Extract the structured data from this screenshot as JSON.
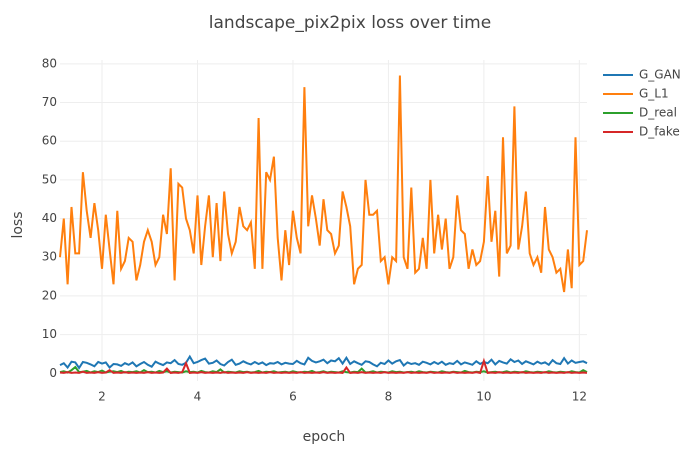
{
  "chart_data": {
    "type": "line",
    "title": "landscape_pix2pix loss over time",
    "x_label": "epoch",
    "y_label": "loss",
    "xlim": [
      1.12,
      12.16
    ],
    "xticks": [
      2,
      4,
      6,
      8,
      10,
      12
    ],
    "ylim": [
      -2,
      81
    ],
    "yticks": [
      0,
      10,
      20,
      30,
      40,
      50,
      60,
      70,
      80
    ],
    "grid": true,
    "legend": "top-right",
    "x": [
      1.12,
      1.2,
      1.28,
      1.36,
      1.44,
      1.52,
      1.6,
      1.68,
      1.76,
      1.84,
      1.92,
      2,
      2.08,
      2.16,
      2.24,
      2.32,
      2.4,
      2.48,
      2.56,
      2.64,
      2.72,
      2.8,
      2.88,
      2.96,
      3.04,
      3.12,
      3.2,
      3.28,
      3.36,
      3.44,
      3.52,
      3.6,
      3.68,
      3.76,
      3.84,
      3.92,
      4,
      4.08,
      4.16,
      4.24,
      4.32,
      4.4,
      4.48,
      4.56,
      4.64,
      4.72,
      4.8,
      4.88,
      4.96,
      5.04,
      5.12,
      5.2,
      5.28,
      5.36,
      5.44,
      5.52,
      5.6,
      5.68,
      5.76,
      5.84,
      5.92,
      6,
      6.08,
      6.16,
      6.24,
      6.32,
      6.4,
      6.48,
      6.56,
      6.64,
      6.72,
      6.8,
      6.88,
      6.96,
      7.04,
      7.12,
      7.2,
      7.28,
      7.36,
      7.44,
      7.52,
      7.6,
      7.68,
      7.76,
      7.84,
      7.92,
      8,
      8.08,
      8.16,
      8.24,
      8.32,
      8.4,
      8.48,
      8.56,
      8.64,
      8.72,
      8.8,
      8.88,
      8.96,
      9.04,
      9.12,
      9.2,
      9.28,
      9.36,
      9.44,
      9.52,
      9.6,
      9.68,
      9.76,
      9.84,
      9.92,
      10,
      10.08,
      10.16,
      10.24,
      10.32,
      10.4,
      10.48,
      10.56,
      10.64,
      10.72,
      10.8,
      10.88,
      10.96,
      11.04,
      11.12,
      11.2,
      11.28,
      11.36,
      11.44,
      11.52,
      11.6,
      11.68,
      11.76,
      11.84,
      11.92,
      12,
      12.08,
      12.16
    ],
    "series": [
      {
        "name": "G_GAN",
        "color": "#1f77b4",
        "values": [
          2.1,
          2.6,
          1.5,
          3,
          2.8,
          1.4,
          2.9,
          2.7,
          2.3,
          1.8,
          2.9,
          2.5,
          2.8,
          1.5,
          2.4,
          2.3,
          1.9,
          2.6,
          2.2,
          2.8,
          1.8,
          2.4,
          2.9,
          2.2,
          1.7,
          3,
          2.5,
          2.1,
          2.8,
          2.6,
          3.4,
          2.4,
          2.2,
          2.7,
          4.3,
          2.6,
          2.9,
          3.4,
          3.8,
          2.5,
          2.7,
          3.3,
          2.4,
          2,
          2.9,
          3.5,
          2.2,
          2.5,
          3.1,
          2.6,
          2.3,
          2.9,
          2.4,
          2.8,
          2.1,
          2.6,
          2.5,
          2.9,
          2.3,
          2.7,
          2.5,
          2.4,
          3.2,
          2.6,
          2.3,
          4,
          3.2,
          2.8,
          3.1,
          3.5,
          2.6,
          3.3,
          3.1,
          3.9,
          2.5,
          4,
          2.4,
          3.1,
          2.6,
          2.2,
          3.1,
          2.9,
          2.3,
          1.8,
          2.7,
          2.4,
          3.3,
          2.5,
          3.1,
          3.4,
          2,
          2.8,
          2.4,
          2.6,
          2.2,
          3,
          2.7,
          2.3,
          2.9,
          2.4,
          3,
          2.2,
          2.6,
          2.4,
          3.2,
          2.3,
          2.8,
          2.5,
          2.2,
          3.1,
          2.4,
          2.9,
          2.6,
          3.5,
          2.3,
          3.2,
          2.8,
          2.5,
          3.6,
          2.9,
          3.3,
          2.4,
          3.1,
          2.7,
          2.3,
          3,
          2.5,
          2.8,
          2.2,
          3.4,
          2.6,
          2.4,
          3.9,
          2.5,
          3.3,
          2.7,
          2.9,
          3.1,
          2.6
        ]
      },
      {
        "name": "G_L1",
        "color": "#ff7f0e",
        "values": [
          30,
          40,
          23,
          43,
          31,
          31,
          52,
          42,
          35,
          44,
          37,
          27,
          41,
          32,
          23,
          42,
          27,
          29,
          35,
          34,
          24,
          28,
          34,
          37,
          34,
          28,
          30,
          41,
          36,
          53,
          24,
          49,
          48,
          40,
          37,
          31,
          46,
          28,
          38,
          46,
          30,
          44,
          29,
          47,
          36,
          31,
          34,
          43,
          38,
          37,
          39,
          27,
          66,
          27,
          52,
          50,
          56,
          35,
          24,
          37,
          28,
          42,
          35,
          31,
          74,
          38,
          46,
          40,
          33,
          45,
          37,
          36,
          31,
          33,
          47,
          43,
          38,
          23,
          27,
          28,
          50,
          41,
          41,
          42,
          29,
          30,
          23,
          30,
          29,
          77,
          30,
          27,
          48,
          26,
          27,
          35,
          27,
          50,
          31,
          41,
          32,
          40,
          27,
          30,
          46,
          37,
          36,
          27,
          32,
          28,
          29,
          34,
          51,
          34,
          42,
          25,
          61,
          31,
          33,
          69,
          32,
          38,
          47,
          31,
          28,
          30,
          26,
          43,
          32,
          30,
          26,
          27,
          21,
          32,
          22,
          61,
          28,
          29,
          37
        ]
      },
      {
        "name": "D_real",
        "color": "#2ca02c",
        "values": [
          0.3,
          0.5,
          0.2,
          0.8,
          1.6,
          0.3,
          0.4,
          0.6,
          0.2,
          0.5,
          0.3,
          0.7,
          0.2,
          0.4,
          0.5,
          0.3,
          0.6,
          0.2,
          0.4,
          0.3,
          0.5,
          0.2,
          0.8,
          0.3,
          0.4,
          0.2,
          0.6,
          0.3,
          0.5,
          0.2,
          0.4,
          0.3,
          0.2,
          0.5,
          0.3,
          0.4,
          0.2,
          0.6,
          0.3,
          0.2,
          0.5,
          0.3,
          1,
          0.2,
          0.4,
          0.3,
          0.2,
          0.5,
          0.3,
          0.4,
          0.2,
          0.3,
          0.6,
          0.2,
          0.4,
          0.3,
          0.5,
          0.2,
          0.3,
          0.4,
          0.2,
          0.5,
          0.3,
          0.2,
          0.4,
          0.3,
          0.6,
          0.2,
          0.3,
          0.5,
          0.2,
          0.4,
          0.3,
          0.2,
          0.5,
          0.3,
          0.2,
          0.4,
          0.3,
          1.2,
          0.2,
          0.3,
          0.5,
          0.2,
          0.4,
          0.3,
          0.2,
          0.5,
          0.3,
          0.4,
          0.2,
          0.3,
          0.4,
          0.2,
          0.5,
          0.3,
          0.2,
          0.4,
          0.3,
          0.2,
          0.5,
          0.3,
          0.2,
          0.4,
          0.3,
          0.2,
          0.6,
          0.3,
          0.2,
          0.4,
          0.3,
          0.5,
          0.2,
          0.3,
          0.4,
          0.2,
          0.3,
          0.5,
          0.2,
          0.4,
          0.3,
          0.2,
          0.5,
          0.3,
          0.2,
          0.4,
          0.3,
          0.2,
          0.5,
          0.3,
          0.2,
          0.4,
          0.3,
          0.2,
          0.5,
          0.3,
          0.2,
          0.8,
          0.3
        ]
      },
      {
        "name": "D_fake",
        "color": "#d62728",
        "values": [
          0.2,
          0.1,
          0.3,
          0.1,
          0.2,
          0.1,
          0.4,
          0.1,
          0.2,
          0.1,
          0.3,
          0.1,
          0.2,
          0.8,
          0.1,
          0.2,
          0.1,
          0.3,
          0.1,
          0.2,
          0.1,
          0.2,
          0.1,
          0.3,
          0.1,
          0.2,
          0.1,
          0.2,
          1.2,
          0.1,
          0.2,
          0.1,
          0.3,
          2.6,
          0.1,
          0.2,
          0.1,
          0.3,
          0.1,
          0.2,
          0.1,
          0.2,
          0.1,
          0.3,
          0.1,
          0.2,
          0.1,
          0.2,
          0.1,
          0.3,
          0.1,
          0.2,
          0.1,
          0.2,
          0.1,
          0.3,
          0.1,
          0.2,
          0.1,
          0.2,
          0.1,
          0.2,
          0.1,
          0.3,
          0.1,
          0.2,
          0.1,
          0.2,
          0.1,
          0.3,
          0.1,
          0.2,
          0.1,
          0.2,
          0.1,
          1.5,
          0.1,
          0.2,
          0.1,
          0.3,
          0.1,
          0.2,
          0.1,
          0.2,
          0.1,
          0.3,
          0.1,
          0.2,
          0.1,
          0.2,
          0.1,
          0.3,
          0.1,
          0.2,
          0.1,
          0.2,
          0.1,
          0.3,
          0.1,
          0.2,
          0.1,
          0.2,
          0.1,
          0.3,
          0.1,
          0.2,
          0.1,
          0.2,
          0.1,
          0.3,
          0.1,
          3.2,
          0.1,
          0.2,
          0.1,
          0.3,
          0.1,
          0.2,
          0.1,
          0.2,
          0.1,
          0.3,
          0.1,
          0.2,
          0.1,
          0.2,
          0.1,
          0.3,
          0.1,
          0.2,
          0.1,
          0.2,
          0.1,
          0.3,
          0.1,
          0.2,
          0.1,
          0.2,
          0.1
        ]
      }
    ]
  }
}
